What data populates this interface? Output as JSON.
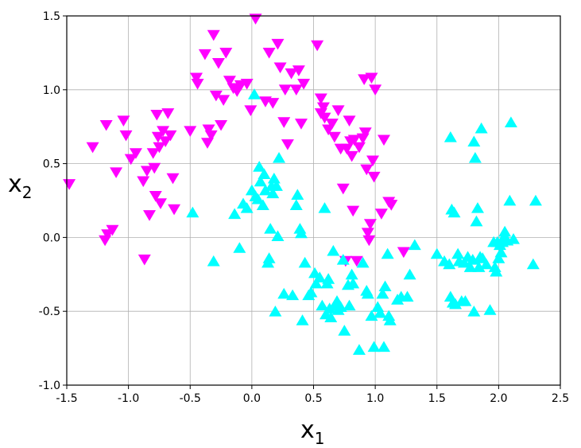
{
  "chart_data": {
    "type": "scatter",
    "xlabel": "x",
    "xlabel_subscript": "1",
    "ylabel": "x",
    "ylabel_subscript": "2",
    "xlim": [
      -1.5,
      2.5
    ],
    "ylim": [
      -1.0,
      1.5
    ],
    "grid": true,
    "x_ticks": [
      -1.5,
      -1.0,
      -0.5,
      0.0,
      0.5,
      1.0,
      1.5,
      2.0,
      2.5
    ],
    "x_tick_labels": [
      "-1.5",
      "-1.0",
      "-0.5",
      "0.0",
      "0.5",
      "1.0",
      "1.5",
      "2.0",
      "2.5"
    ],
    "y_ticks": [
      -1.0,
      -0.5,
      0.0,
      0.5,
      1.0,
      1.5
    ],
    "y_tick_labels": [
      "-1.0",
      "-0.5",
      "0.0",
      "0.5",
      "1.0",
      "1.5"
    ],
    "series": [
      {
        "marker": "triangle-down",
        "color": "#ff00ff",
        "points": [
          [
            -1.48,
            0.36
          ],
          [
            -1.29,
            0.61
          ],
          [
            -1.18,
            0.76
          ],
          [
            -1.1,
            0.44
          ],
          [
            -1.17,
            0.02
          ],
          [
            -1.19,
            -0.02
          ],
          [
            -1.13,
            0.05
          ],
          [
            -1.04,
            0.79
          ],
          [
            -1.02,
            0.69
          ],
          [
            -0.98,
            0.53
          ],
          [
            -0.94,
            0.57
          ],
          [
            -0.88,
            0.38
          ],
          [
            -0.87,
            -0.15
          ],
          [
            -0.85,
            0.45
          ],
          [
            -0.83,
            0.15
          ],
          [
            -0.8,
            0.57
          ],
          [
            -0.79,
            0.47
          ],
          [
            -0.78,
            0.28
          ],
          [
            -0.77,
            0.83
          ],
          [
            -0.76,
            0.68
          ],
          [
            -0.75,
            0.61
          ],
          [
            -0.74,
            0.23
          ],
          [
            -0.72,
            0.72
          ],
          [
            -0.7,
            0.65
          ],
          [
            -0.68,
            0.84
          ],
          [
            -0.66,
            0.69
          ],
          [
            -0.64,
            0.4
          ],
          [
            -0.63,
            0.19
          ],
          [
            -0.5,
            0.72
          ],
          [
            -0.45,
            1.08
          ],
          [
            -0.44,
            1.04
          ],
          [
            -0.38,
            1.24
          ],
          [
            -0.36,
            0.64
          ],
          [
            -0.35,
            0.73
          ],
          [
            -0.33,
            0.69
          ],
          [
            -0.31,
            1.37
          ],
          [
            -0.29,
            0.96
          ],
          [
            -0.27,
            1.18
          ],
          [
            -0.25,
            0.76
          ],
          [
            -0.23,
            0.93
          ],
          [
            -0.21,
            1.25
          ],
          [
            -0.18,
            1.06
          ],
          [
            -0.15,
            1.01
          ],
          [
            -0.12,
            0.99
          ],
          [
            -0.09,
            1.03
          ],
          [
            -0.04,
            1.04
          ],
          [
            -0.01,
            0.86
          ],
          [
            0.03,
            1.48
          ],
          [
            0.11,
            0.92
          ],
          [
            0.14,
            1.25
          ],
          [
            0.17,
            0.91
          ],
          [
            0.21,
            1.31
          ],
          [
            0.23,
            1.15
          ],
          [
            0.26,
            0.78
          ],
          [
            0.27,
            1.0
          ],
          [
            0.29,
            0.63
          ],
          [
            0.32,
            1.11
          ],
          [
            0.36,
            1.0
          ],
          [
            0.38,
            1.13
          ],
          [
            0.4,
            0.77
          ],
          [
            0.42,
            1.04
          ],
          [
            0.53,
            1.3
          ],
          [
            0.56,
            0.94
          ],
          [
            0.56,
            0.84
          ],
          [
            0.58,
            0.88
          ],
          [
            0.59,
            0.81
          ],
          [
            0.62,
            0.73
          ],
          [
            0.65,
            0.77
          ],
          [
            0.67,
            0.68
          ],
          [
            0.7,
            0.86
          ],
          [
            0.72,
            0.6
          ],
          [
            0.74,
            0.33
          ],
          [
            0.76,
            -0.16
          ],
          [
            0.77,
            0.6
          ],
          [
            0.79,
            0.79
          ],
          [
            0.8,
            0.65
          ],
          [
            0.81,
            0.55
          ],
          [
            0.82,
            0.18
          ],
          [
            0.83,
            0.66
          ],
          [
            0.85,
            -0.16
          ],
          [
            0.87,
            0.61
          ],
          [
            0.9,
            0.67
          ],
          [
            0.91,
            1.07
          ],
          [
            0.92,
            0.71
          ],
          [
            0.93,
            0.46
          ],
          [
            0.94,
            0.03
          ],
          [
            0.95,
            -0.02
          ],
          [
            0.96,
            0.09
          ],
          [
            0.97,
            1.08
          ],
          [
            0.98,
            0.52
          ],
          [
            0.99,
            0.41
          ],
          [
            1.0,
            1.0
          ],
          [
            1.05,
            0.16
          ],
          [
            1.07,
            0.66
          ],
          [
            1.11,
            0.24
          ],
          [
            1.13,
            0.22
          ],
          [
            1.23,
            -0.1
          ]
        ]
      },
      {
        "marker": "triangle-up",
        "color": "#00ffff",
        "points": [
          [
            -0.48,
            0.17
          ],
          [
            -0.31,
            -0.16
          ],
          [
            -0.14,
            0.16
          ],
          [
            -0.1,
            -0.07
          ],
          [
            -0.07,
            0.23
          ],
          [
            -0.04,
            0.2
          ],
          [
            0.0,
            0.32
          ],
          [
            0.02,
            0.97
          ],
          [
            0.03,
            0.28
          ],
          [
            0.05,
            0.26
          ],
          [
            0.06,
            0.48
          ],
          [
            0.07,
            0.38
          ],
          [
            0.09,
            0.22
          ],
          [
            0.1,
            0.43
          ],
          [
            0.11,
            0.32
          ],
          [
            0.13,
            -0.17
          ],
          [
            0.14,
            -0.14
          ],
          [
            0.15,
            0.06
          ],
          [
            0.16,
            0.35
          ],
          [
            0.17,
            0.3
          ],
          [
            0.18,
            0.4
          ],
          [
            0.19,
            -0.5
          ],
          [
            0.2,
            0.35
          ],
          [
            0.21,
            0.01
          ],
          [
            0.22,
            0.54
          ],
          [
            0.26,
            -0.38
          ],
          [
            0.33,
            -0.39
          ],
          [
            0.36,
            0.22
          ],
          [
            0.37,
            0.29
          ],
          [
            0.39,
            0.06
          ],
          [
            0.4,
            0.03
          ],
          [
            0.41,
            -0.56
          ],
          [
            0.43,
            -0.17
          ],
          [
            0.46,
            -0.39
          ],
          [
            0.48,
            -0.37
          ],
          [
            0.51,
            -0.24
          ],
          [
            0.52,
            -0.31
          ],
          [
            0.55,
            -0.27
          ],
          [
            0.57,
            -0.46
          ],
          [
            0.59,
            0.2
          ],
          [
            0.6,
            -0.52
          ],
          [
            0.61,
            -0.31
          ],
          [
            0.62,
            -0.28
          ],
          [
            0.63,
            -0.48
          ],
          [
            0.64,
            -0.54
          ],
          [
            0.66,
            -0.09
          ],
          [
            0.67,
            -0.46
          ],
          [
            0.69,
            -0.43
          ],
          [
            0.7,
            -0.49
          ],
          [
            0.72,
            -0.47
          ],
          [
            0.74,
            -0.15
          ],
          [
            0.75,
            -0.63
          ],
          [
            0.78,
            -0.32
          ],
          [
            0.79,
            -0.46
          ],
          [
            0.81,
            -0.25
          ],
          [
            0.82,
            -0.31
          ],
          [
            0.87,
            -0.76
          ],
          [
            0.9,
            -0.17
          ],
          [
            0.93,
            -0.36
          ],
          [
            0.94,
            -0.38
          ],
          [
            0.97,
            -0.53
          ],
          [
            0.99,
            -0.74
          ],
          [
            1.02,
            -0.47
          ],
          [
            1.04,
            -0.51
          ],
          [
            1.06,
            -0.38
          ],
          [
            1.07,
            -0.74
          ],
          [
            1.08,
            -0.33
          ],
          [
            1.1,
            -0.11
          ],
          [
            1.11,
            -0.53
          ],
          [
            1.12,
            -0.56
          ],
          [
            1.18,
            -0.42
          ],
          [
            1.21,
            -0.4
          ],
          [
            1.26,
            -0.4
          ],
          [
            1.28,
            -0.25
          ],
          [
            1.32,
            -0.05
          ],
          [
            1.5,
            -0.11
          ],
          [
            1.56,
            -0.16
          ],
          [
            1.6,
            -0.18
          ],
          [
            1.61,
            -0.4
          ],
          [
            1.61,
            0.68
          ],
          [
            1.62,
            0.19
          ],
          [
            1.63,
            -0.44
          ],
          [
            1.64,
            0.17
          ],
          [
            1.65,
            -0.45
          ],
          [
            1.67,
            -0.11
          ],
          [
            1.68,
            -0.16
          ],
          [
            1.7,
            -0.43
          ],
          [
            1.72,
            -0.17
          ],
          [
            1.73,
            -0.43
          ],
          [
            1.75,
            -0.13
          ],
          [
            1.77,
            -0.2
          ],
          [
            1.79,
            -0.15
          ],
          [
            1.8,
            -0.5
          ],
          [
            1.8,
            0.65
          ],
          [
            1.81,
            0.54
          ],
          [
            1.82,
            0.11
          ],
          [
            1.83,
            0.2
          ],
          [
            1.84,
            -0.2
          ],
          [
            1.85,
            -0.13
          ],
          [
            1.86,
            0.74
          ],
          [
            1.87,
            -0.14
          ],
          [
            1.9,
            -0.18
          ],
          [
            1.93,
            -0.49
          ],
          [
            1.96,
            -0.03
          ],
          [
            1.97,
            -0.2
          ],
          [
            1.98,
            -0.23
          ],
          [
            1.99,
            -0.03
          ],
          [
            2.0,
            -0.14
          ],
          [
            2.01,
            -0.05
          ],
          [
            2.02,
            -0.1
          ],
          [
            2.03,
            -0.03
          ],
          [
            2.04,
            0.0
          ],
          [
            2.05,
            0.04
          ],
          [
            2.07,
            -0.02
          ],
          [
            2.09,
            0.25
          ],
          [
            2.1,
            0.78
          ],
          [
            2.12,
            -0.01
          ],
          [
            2.28,
            -0.18
          ],
          [
            2.3,
            0.25
          ]
        ]
      }
    ]
  }
}
